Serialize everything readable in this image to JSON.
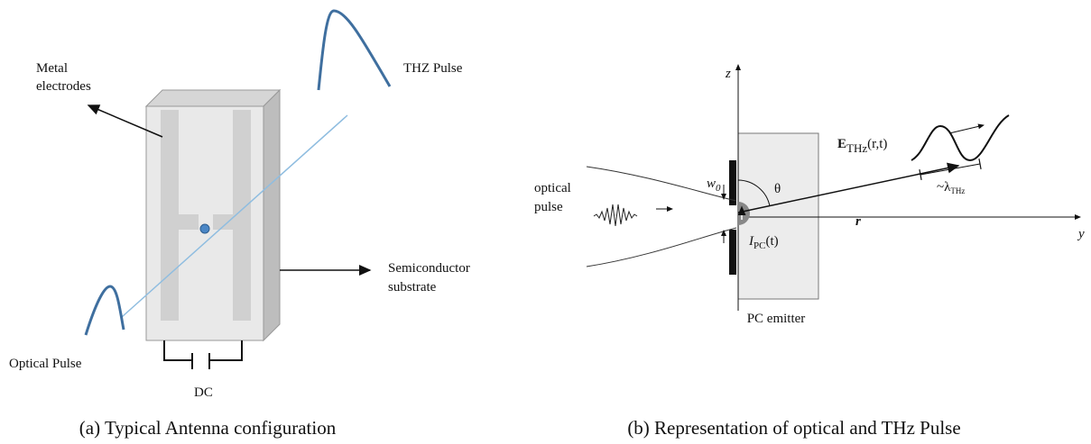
{
  "panel_a": {
    "metal_electrodes": [
      "Metal",
      "electrodes"
    ],
    "thz_pulse": "THZ Pulse",
    "semiconductor_substrate": [
      "Semiconductor",
      "substrate"
    ],
    "optical_pulse": "Optical Pulse",
    "dc": "DC",
    "caption": "(a) Typical Antenna configuration"
  },
  "panel_b": {
    "z_axis": "z",
    "y_axis": "y",
    "field": {
      "symbol": "E",
      "subscript": "THz",
      "args": "(r,t)"
    },
    "optical_pulse": [
      "optical",
      "pulse"
    ],
    "waist": {
      "symbol": "w",
      "subscript": "0"
    },
    "angle": "θ",
    "distance": "r",
    "wavelength": {
      "symbol": "~λ",
      "subscript": "THz"
    },
    "current": {
      "symbol": "I",
      "subscript": "PC",
      "args": "(t)"
    },
    "emitter": "PC emitter",
    "caption": "(b) Representation of optical and THz Pulse"
  }
}
